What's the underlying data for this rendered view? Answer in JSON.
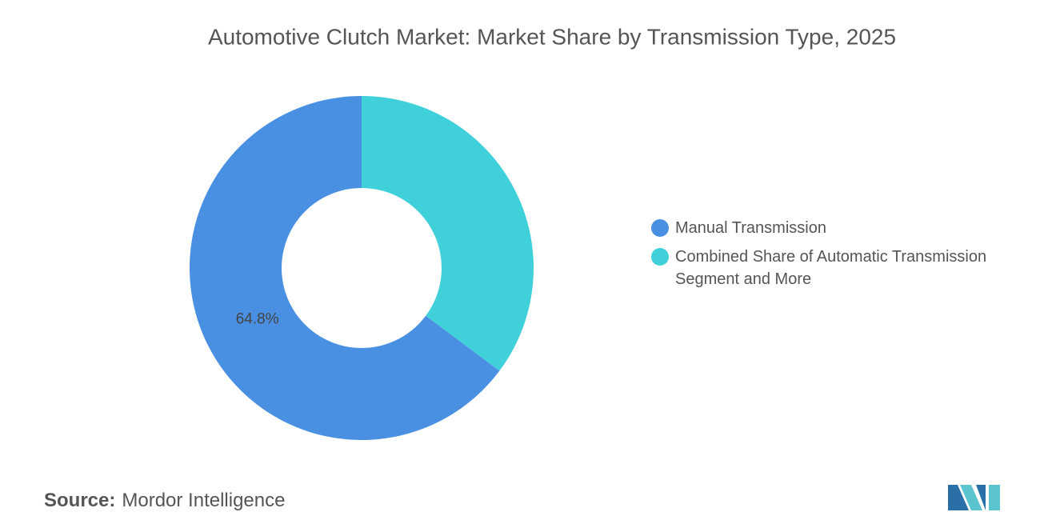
{
  "chart_data": {
    "type": "donut",
    "title": "Automotive Clutch Market: Market Share by Transmission Type, 2025",
    "categories": [
      "Manual Transmission",
      "Combined Share of Automatic Transmission Segment and More"
    ],
    "values": [
      64.8,
      35.2
    ],
    "value_labels": [
      "64.8%",
      null
    ],
    "colors": [
      "#4a90e2",
      "#40d0da"
    ]
  },
  "source_label": "Source:",
  "source": "Mordor Intelligence"
}
